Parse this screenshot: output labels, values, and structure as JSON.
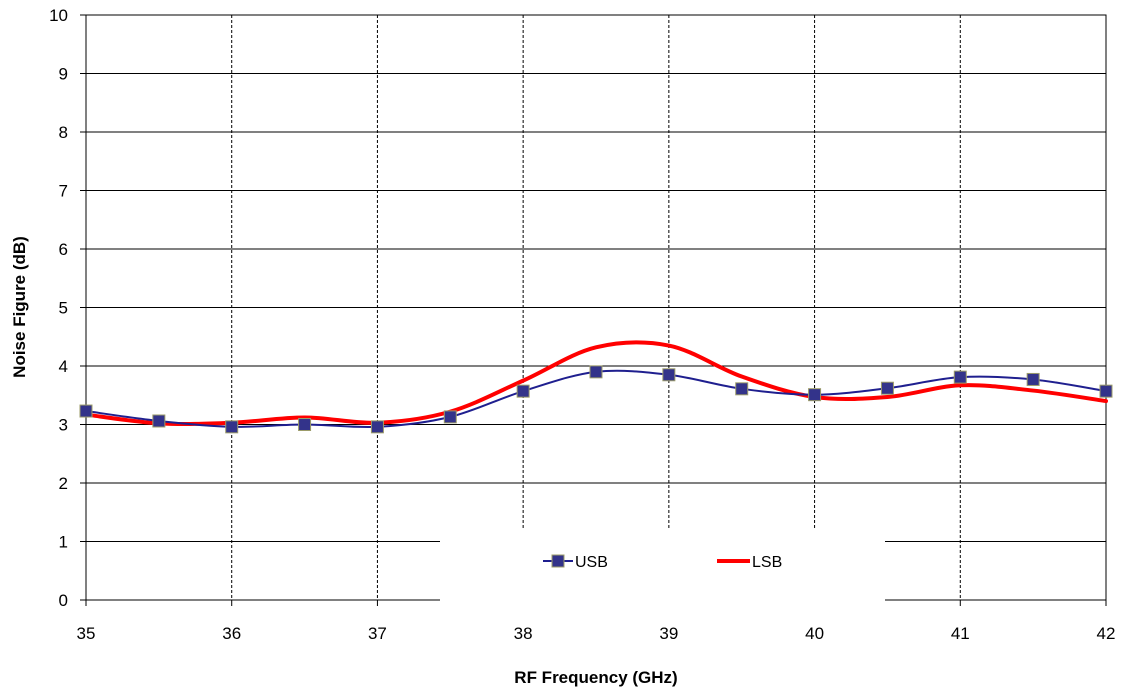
{
  "chart_data": {
    "type": "line",
    "xlabel": "RF Frequency (GHz)",
    "ylabel": "Noise Figure  (dB)",
    "xlim": [
      35,
      42
    ],
    "ylim": [
      0,
      10
    ],
    "x_ticks": [
      "35",
      "36",
      "37",
      "38",
      "39",
      "40",
      "41",
      "42"
    ],
    "y_ticks": [
      "0",
      "1",
      "2",
      "3",
      "4",
      "5",
      "6",
      "7",
      "8",
      "9",
      "10"
    ],
    "grid": {
      "horizontal": "solid",
      "vertical": "dashed"
    },
    "legend_position": "bottom-center",
    "series": [
      {
        "name": "USB",
        "color": "#1f1f8f",
        "marker": "square",
        "marker_color": "#33338a",
        "x": [
          35,
          35.5,
          36,
          36.5,
          37,
          37.5,
          38,
          38.5,
          39,
          39.5,
          40,
          40.5,
          41,
          41.5,
          42
        ],
        "y": [
          3.23,
          3.06,
          2.96,
          3.0,
          2.96,
          3.13,
          3.57,
          3.9,
          3.85,
          3.61,
          3.51,
          3.62,
          3.81,
          3.77,
          3.57
        ]
      },
      {
        "name": "LSB",
        "color": "#ff0000",
        "marker": "none",
        "x": [
          35,
          35.5,
          36,
          36.5,
          37,
          37.5,
          38,
          38.5,
          39,
          39.5,
          40,
          40.5,
          41,
          41.5,
          42
        ],
        "y": [
          3.17,
          3.02,
          3.03,
          3.12,
          3.03,
          3.22,
          3.75,
          4.32,
          4.35,
          3.82,
          3.47,
          3.47,
          3.67,
          3.58,
          3.4
        ]
      }
    ]
  }
}
